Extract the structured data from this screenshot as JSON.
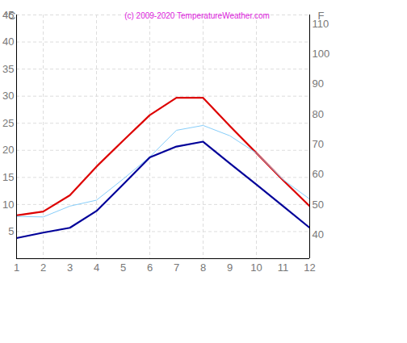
{
  "chart_data": {
    "type": "line",
    "title": "(c) 2009-2020 TemperatureWeather.com",
    "ylabel": "°C",
    "y2label": "F",
    "x": [
      1,
      2,
      3,
      4,
      5,
      6,
      7,
      8,
      9,
      10,
      11,
      12
    ],
    "xlim": [
      1,
      12
    ],
    "xticks": [
      1,
      2,
      3,
      4,
      5,
      6,
      7,
      8,
      9,
      10,
      11,
      12
    ],
    "ylim": [
      0,
      45
    ],
    "yticks": [
      5,
      10,
      15,
      20,
      25,
      30,
      35,
      40,
      45
    ],
    "y2lim": [
      32,
      113
    ],
    "y2ticks": [
      40,
      50,
      60,
      70,
      80,
      90,
      100,
      110
    ],
    "grid": true,
    "series": [
      {
        "color": "#dd0000",
        "values": [
          8,
          8.7,
          11.7,
          17,
          21.8,
          26.5,
          29.7,
          29.7,
          24.5,
          19.5,
          14.5,
          9.7
        ]
      },
      {
        "color": "#87cefa",
        "values": [
          7.8,
          7.7,
          9.7,
          10.8,
          14.7,
          18.8,
          23.7,
          24.6,
          22.7,
          19.5,
          14.6,
          11
        ]
      },
      {
        "color": "#000099",
        "values": [
          3.8,
          4.8,
          5.7,
          8.8,
          13.7,
          18.7,
          20.7,
          21.6,
          17.6,
          13.7,
          9.7,
          5.7
        ]
      }
    ]
  }
}
